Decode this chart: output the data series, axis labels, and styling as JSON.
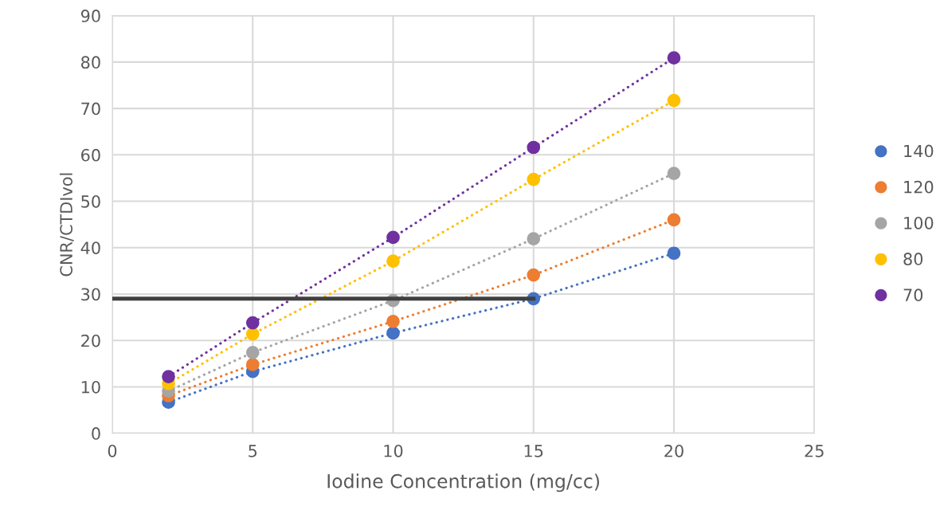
{
  "chart_data": {
    "type": "line",
    "xlabel": "Iodine Concentration (mg/cc)",
    "ylabel": "CNR/CTDIvol",
    "x": [
      2,
      5,
      10,
      15,
      20
    ],
    "series": [
      {
        "name": "140",
        "color": "#4472c4",
        "values": [
          6.7,
          13.3,
          21.6,
          29.0,
          38.8
        ]
      },
      {
        "name": "120",
        "color": "#ed7d31",
        "values": [
          8.1,
          14.8,
          24.1,
          34.1,
          46.0
        ]
      },
      {
        "name": "100",
        "color": "#a5a5a5",
        "values": [
          9.1,
          17.4,
          28.6,
          41.9,
          56.0
        ]
      },
      {
        "name": "80",
        "color": "#ffc000",
        "values": [
          10.7,
          21.4,
          37.1,
          54.7,
          71.7
        ]
      },
      {
        "name": "70",
        "color": "#7030a0",
        "values": [
          12.2,
          23.8,
          42.2,
          61.6,
          80.9
        ]
      },
      {
        "type": "line",
        "color": "#404040",
        "x": [
          0,
          15
        ],
        "values": [
          29,
          29
        ],
        "marker": "none",
        "line_style": "solid"
      }
    ],
    "marker": "circle",
    "line_style": "dotted",
    "xlim": [
      0,
      25
    ],
    "xticks": [
      0,
      5,
      10,
      15,
      20,
      25
    ],
    "ylim": [
      0,
      90
    ],
    "yticks": [
      0,
      10,
      20,
      30,
      40,
      50,
      60,
      70,
      80,
      90
    ],
    "grid": true,
    "legend": "right"
  }
}
